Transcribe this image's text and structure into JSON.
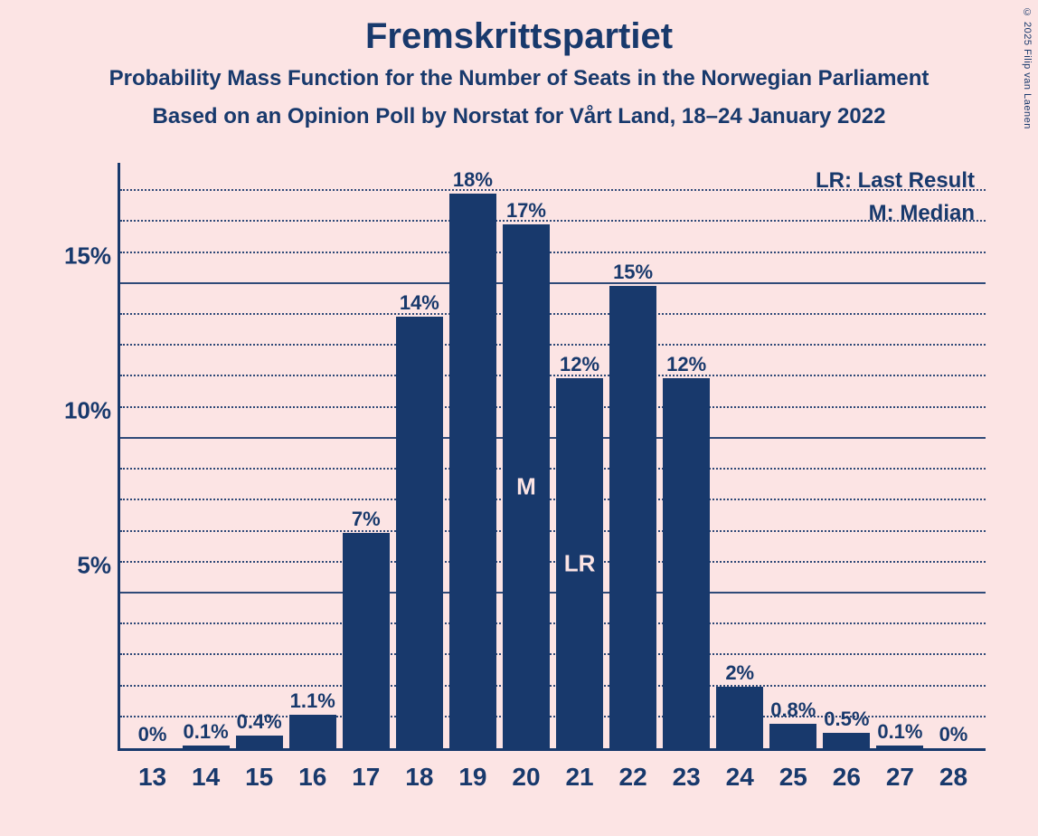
{
  "copyright": "© 2025 Filip van Laenen",
  "titles": {
    "main": "Fremskrittspartiet",
    "sub1": "Probability Mass Function for the Number of Seats in the Norwegian Parliament",
    "sub2": "Based on an Opinion Poll by Norstat for Vårt Land, 18–24 January 2022"
  },
  "legend": {
    "lr": "LR: Last Result",
    "m": "M: Median"
  },
  "chart": {
    "type": "bar",
    "background_color": "#fce4e4",
    "bar_color": "#18396c",
    "text_color": "#18396c",
    "marker_text_color": "#fce4e4",
    "grid_color": "#18396c",
    "y_max_pct": 19,
    "y_major_ticks": [
      5,
      10,
      15
    ],
    "y_minor_step": 1,
    "bar_width_ratio": 0.88,
    "title_fontsize": 40,
    "subtitle_fontsize": 24,
    "axis_label_fontsize": 26,
    "bar_label_fontsize": 22,
    "xtick_fontsize": 28,
    "categories": [
      13,
      14,
      15,
      16,
      17,
      18,
      19,
      20,
      21,
      22,
      23,
      24,
      25,
      26,
      27,
      28
    ],
    "values": [
      0,
      0.1,
      0.4,
      1.1,
      7,
      14,
      18,
      17,
      12,
      15,
      12,
      2,
      0.8,
      0.5,
      0.1,
      0
    ],
    "value_labels": [
      "0%",
      "0.1%",
      "0.4%",
      "1.1%",
      "7%",
      "14%",
      "18%",
      "17%",
      "12%",
      "15%",
      "12%",
      "2%",
      "0.8%",
      "0.5%",
      "0.1%",
      "0%"
    ],
    "markers": {
      "median_index": 7,
      "median_label": "M",
      "last_result_index": 8,
      "last_result_label": "LR"
    }
  }
}
